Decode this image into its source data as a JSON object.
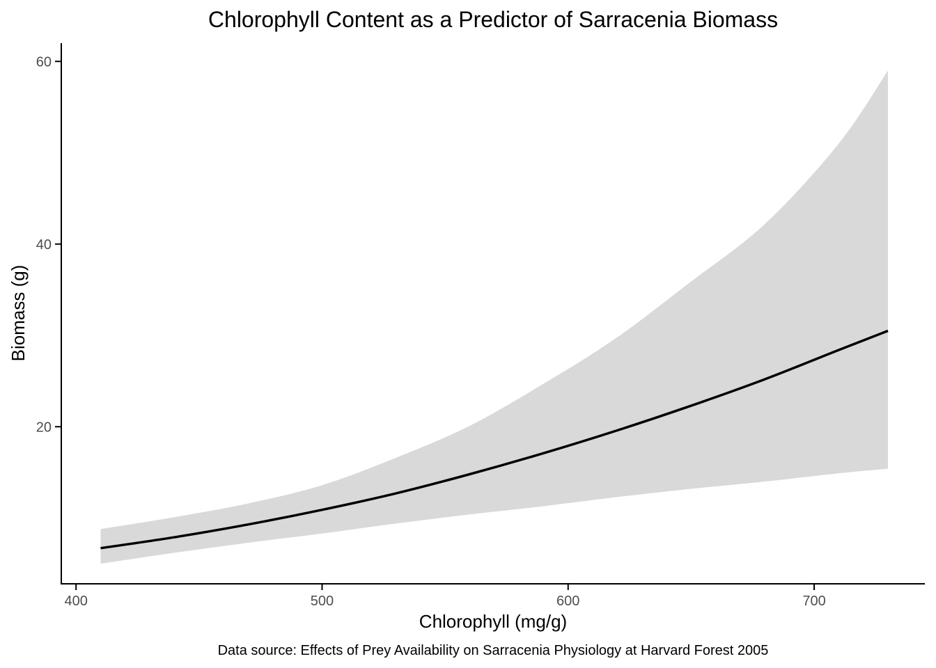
{
  "chart_data": {
    "type": "line",
    "title": "Chlorophyll Content as a Predictor of Sarracenia Biomass",
    "xlabel": "Chlorophyll (mg/g)",
    "ylabel": "Biomass (g)",
    "caption": "Data source: Effects of Prey Availability on Sarracenia Physiology at Harvard Forest 2005",
    "xlim": [
      394,
      745
    ],
    "ylim": [
      2.8,
      62
    ],
    "x_ticks": [
      400,
      500,
      600,
      700
    ],
    "x_tick_labels": [
      "400",
      "500",
      "600",
      "700"
    ],
    "y_ticks": [
      20,
      40,
      60
    ],
    "y_tick_labels": [
      "20",
      "40",
      "60"
    ],
    "grid": false,
    "legend": "none",
    "colors": {
      "line": "#000000",
      "ribbon": "#d9d9d9",
      "axis": "#000000",
      "tick_text": "#4d4d4d",
      "background": "#ffffff"
    },
    "series": [
      {
        "x": [
          410,
          440,
          470,
          500,
          530,
          560,
          590,
          620,
          650,
          680,
          710,
          730
        ],
        "y": [
          6.7,
          7.9,
          9.3,
          10.9,
          12.7,
          14.8,
          17.1,
          19.6,
          22.3,
          25.2,
          28.4,
          30.5
        ],
        "lower": [
          5.0,
          6.2,
          7.3,
          8.3,
          9.4,
          10.4,
          11.3,
          12.3,
          13.2,
          14.0,
          14.9,
          15.4
        ],
        "upper": [
          8.8,
          10.1,
          11.6,
          13.6,
          16.6,
          20.1,
          24.7,
          29.8,
          35.9,
          42.2,
          51.0,
          59.0
        ]
      }
    ]
  }
}
